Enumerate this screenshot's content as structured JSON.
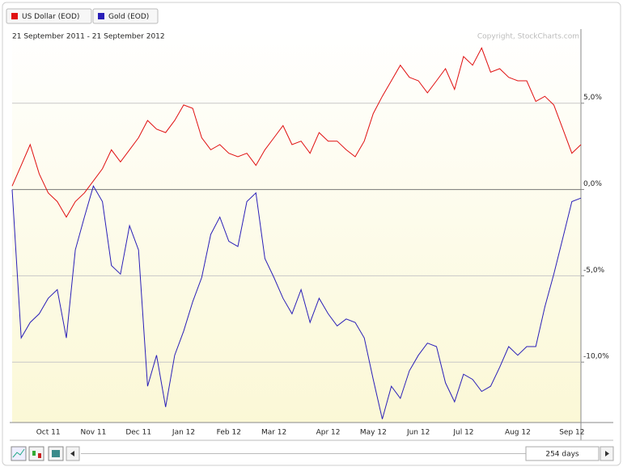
{
  "chart_data": {
    "type": "line",
    "date_range": "21 September 2011 - 21 September 2012",
    "copyright": "Copyright, StockCharts.com",
    "period": "254 days",
    "categories": [
      null,
      null,
      null,
      null,
      "Oct 11",
      null,
      null,
      null,
      null,
      "Nov 11",
      null,
      null,
      null,
      null,
      "Dec 11",
      null,
      null,
      null,
      null,
      "Jan 12",
      null,
      null,
      null,
      null,
      "Feb 12",
      null,
      null,
      null,
      null,
      "Mar 12",
      null,
      null,
      null,
      null,
      null,
      "Apr 12",
      null,
      null,
      null,
      null,
      "May 12",
      null,
      null,
      null,
      null,
      "Jun 12",
      null,
      null,
      null,
      null,
      "Jul 12",
      null,
      null,
      null,
      null,
      null,
      "Aug 12",
      null,
      null,
      null,
      null,
      null,
      "Sep 12",
      null
    ],
    "series": [
      {
        "name": "US Dollar (EOD)",
        "color": "#e01010",
        "values": [
          0.2,
          1.4,
          2.6,
          0.9,
          -0.2,
          -0.7,
          -1.6,
          -0.7,
          -0.2,
          0.5,
          1.2,
          2.3,
          1.6,
          2.3,
          3.0,
          4.0,
          3.5,
          3.3,
          4.0,
          4.9,
          4.7,
          3.0,
          2.3,
          2.6,
          2.1,
          1.9,
          2.1,
          1.4,
          2.3,
          3.0,
          3.7,
          2.6,
          2.8,
          2.1,
          3.3,
          2.8,
          2.8,
          2.3,
          1.9,
          2.8,
          4.4,
          5.4,
          6.3,
          7.2,
          6.5,
          6.3,
          5.6,
          6.3,
          7.0,
          5.8,
          7.7,
          7.2,
          8.2,
          6.8,
          7.0,
          6.5,
          6.3,
          6.3,
          5.1,
          5.4,
          4.9,
          3.5,
          2.1,
          2.6
        ]
      },
      {
        "name": "Gold (EOD)",
        "color": "#2a1fb8",
        "values": [
          0,
          -8.6,
          -7.7,
          -7.2,
          -6.3,
          -5.8,
          -8.6,
          -3.5,
          -1.6,
          0.2,
          -0.7,
          -4.4,
          -4.9,
          -2.1,
          -3.5,
          -11.4,
          -9.6,
          -12.6,
          -9.6,
          -8.2,
          -6.5,
          -5.1,
          -2.6,
          -1.6,
          -3.0,
          -3.3,
          -0.7,
          -0.2,
          -4.0,
          -5.1,
          -6.3,
          -7.2,
          -5.8,
          -7.7,
          -6.3,
          -7.2,
          -7.9,
          -7.5,
          -7.7,
          -8.6,
          -11.0,
          -13.3,
          -11.4,
          -12.1,
          -10.5,
          -9.6,
          -8.9,
          -9.1,
          -11.2,
          -12.3,
          -10.7,
          -11.0,
          -11.7,
          -11.4,
          -10.3,
          -9.1,
          -9.6,
          -9.1,
          -9.1,
          -6.8,
          -4.9,
          -2.8,
          -0.7,
          -0.5
        ]
      }
    ],
    "ylim": [
      -13.5,
      9.2
    ],
    "yticks": [
      {
        "value": -10,
        "label": "-10,0%"
      },
      {
        "value": -5,
        "label": "-5,0%"
      },
      {
        "value": 0,
        "label": "0,0%"
      },
      {
        "value": 5,
        "label": "5,0%"
      }
    ],
    "grid": true
  }
}
